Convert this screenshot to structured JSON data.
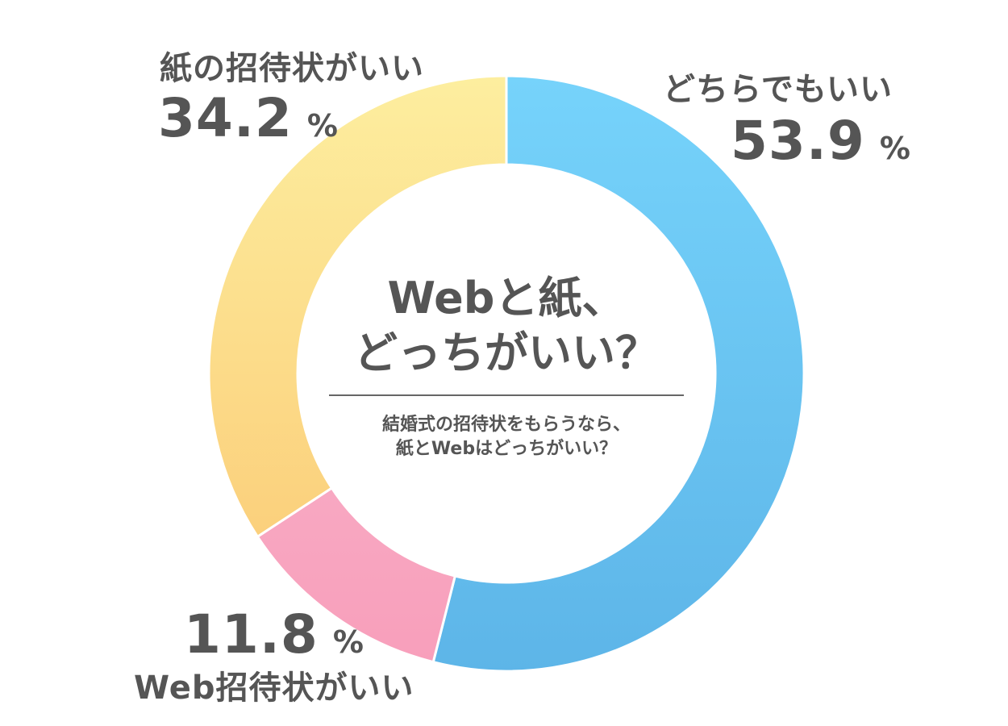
{
  "chart_data": {
    "type": "pie",
    "style": "donut",
    "title": "Webと紙、どっちがいい？",
    "subtitle": "結婚式の招待状をもらうなら、紙とWebはどっちがいい？",
    "unit": "%",
    "slices": [
      {
        "label": "どちらでもいい",
        "value": 53.9,
        "color": "#6cc3f2"
      },
      {
        "label": "Web招待状がいい",
        "value": 11.8,
        "color": "#f8a5bf"
      },
      {
        "label": "紙の招待状がいい",
        "value": 34.2,
        "color": "#fcd98a"
      }
    ]
  },
  "center": {
    "title_line1": "Webと紙、",
    "title_line2": "どっちがいい？",
    "subtitle_line1": "結婚式の招待状をもらうなら、",
    "subtitle_line2": "紙とWebはどっちがいい？"
  },
  "labels": {
    "either": {
      "name": "どちらでもいい",
      "value": "53.9",
      "unit": "%"
    },
    "web": {
      "name": "Web招待状がいい",
      "value": "11.8",
      "unit": "%"
    },
    "paper": {
      "name": "紙の招待状がいい",
      "value": "34.2",
      "unit": "%"
    }
  }
}
